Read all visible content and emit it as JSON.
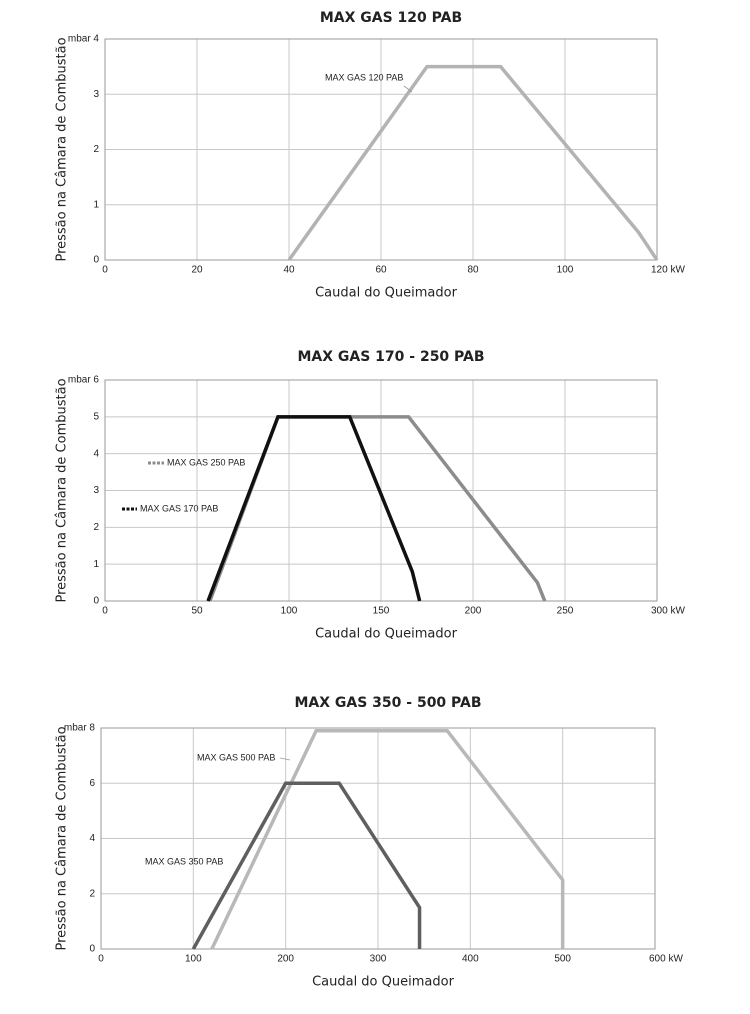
{
  "chart_data": [
    {
      "type": "line",
      "title": "MAX GAS 120 PAB",
      "x_label": "Caudal do Queimador",
      "y_label": "Pressão na Câmara de Combustão",
      "xlim": [
        0,
        120
      ],
      "xticks": [
        0,
        20,
        40,
        60,
        80,
        100,
        {
          "value": 120,
          "label": "120 kW"
        }
      ],
      "ylim": [
        0,
        4
      ],
      "yticks": [
        0,
        1,
        2,
        3,
        {
          "value": 4,
          "label": "mbar 4"
        }
      ],
      "grid": true,
      "series": [
        {
          "name": "MAX GAS 120 PAB",
          "color": "#b3b3b3",
          "x": [
            40,
            70,
            86,
            116,
            120
          ],
          "values": [
            0,
            3.5,
            3.5,
            0.5,
            0
          ]
        }
      ]
    },
    {
      "type": "line",
      "title": "MAX GAS 170 - 250 PAB",
      "x_label": "Caudal do Queimador",
      "y_label": "Pressão na Câmara de Combustão",
      "xlim": [
        0,
        300
      ],
      "xticks": [
        0,
        50,
        100,
        150,
        200,
        250,
        {
          "value": 300,
          "label": "300 kW"
        }
      ],
      "ylim": [
        0,
        6
      ],
      "yticks": [
        0,
        1,
        2,
        3,
        4,
        5,
        {
          "value": 6,
          "label": "mbar 6"
        }
      ],
      "grid": true,
      "series": [
        {
          "name": "MAX GAS 250 PAB",
          "color": "#8c8c8c",
          "x": [
            57,
            94,
            165,
            235,
            239
          ],
          "values": [
            0,
            5,
            5,
            0.5,
            0
          ]
        },
        {
          "name": "MAX GAS 170 PAB",
          "color": "#111111",
          "x": [
            56,
            94,
            133,
            167,
            171
          ],
          "values": [
            0,
            5,
            5,
            0.8,
            0
          ]
        }
      ]
    },
    {
      "type": "line",
      "title": "MAX GAS 350 - 500 PAB",
      "x_label": "Caudal do Queimador",
      "y_label": "Pressão na Câmara de Combustão",
      "xlim": [
        0,
        600
      ],
      "xticks": [
        0,
        100,
        200,
        300,
        400,
        500,
        {
          "value": 600,
          "label": "600 kW"
        }
      ],
      "ylim": [
        0,
        8
      ],
      "yticks": [
        0,
        2,
        4,
        6,
        {
          "value": 8,
          "label": "mbar 8"
        }
      ],
      "grid": true,
      "series": [
        {
          "name": "MAX GAS 500 PAB",
          "color": "#b8b8b8",
          "x": [
            120,
            233,
            375,
            500,
            500
          ],
          "values": [
            0,
            7.9,
            7.9,
            2.5,
            0
          ]
        },
        {
          "name": "MAX GAS 350 PAB",
          "color": "#5f5f5f",
          "x": [
            100,
            200,
            258,
            345,
            345
          ],
          "values": [
            0,
            6,
            6,
            1.5,
            0
          ]
        }
      ]
    }
  ]
}
